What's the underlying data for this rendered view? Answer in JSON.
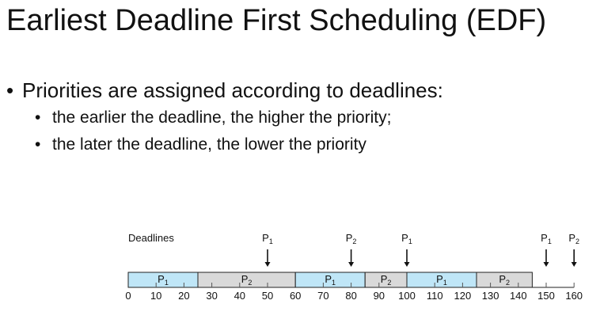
{
  "title": "Earliest Deadline First Scheduling (EDF)",
  "bullets": [
    {
      "level": 1,
      "text": "Priorities are assigned according to deadlines:"
    },
    {
      "level": 2,
      "text": "the earlier the deadline, the higher the priority;"
    },
    {
      "level": 2,
      "text": "the later the deadline, the lower the priority"
    }
  ],
  "timeline": {
    "deadlines_label": "Deadlines",
    "axis_ticks": [
      0,
      10,
      20,
      30,
      40,
      50,
      60,
      70,
      80,
      90,
      100,
      110,
      120,
      130,
      140,
      150,
      160
    ],
    "segments": [
      {
        "process": "P",
        "sub": "1",
        "start": 0,
        "end": 25,
        "color": "#bfe6f7"
      },
      {
        "process": "P",
        "sub": "2",
        "start": 25,
        "end": 60,
        "color": "#d9d9d9"
      },
      {
        "process": "P",
        "sub": "1",
        "start": 60,
        "end": 85,
        "color": "#bfe6f7"
      },
      {
        "process": "P",
        "sub": "2",
        "start": 85,
        "end": 100,
        "color": "#d9d9d9"
      },
      {
        "process": "P",
        "sub": "1",
        "start": 100,
        "end": 125,
        "color": "#bfe6f7"
      },
      {
        "process": "P",
        "sub": "2",
        "start": 125,
        "end": 145,
        "color": "#d9d9d9"
      }
    ],
    "deadline_markers": [
      {
        "process": "P",
        "sub": "1",
        "time": 50
      },
      {
        "process": "P",
        "sub": "2",
        "time": 80
      },
      {
        "process": "P",
        "sub": "1",
        "time": 100
      },
      {
        "process": "P",
        "sub": "1",
        "time": 150
      },
      {
        "process": "P",
        "sub": "2",
        "time": 160
      }
    ]
  }
}
